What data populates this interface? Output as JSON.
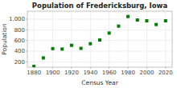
{
  "chart_data": {
    "type": "scatter",
    "title": "Population of Fredericksburg, Iowa",
    "xlabel": "Census Year",
    "ylabel": "Population",
    "x": [
      1880,
      1890,
      1900,
      1910,
      1920,
      1930,
      1940,
      1950,
      1960,
      1970,
      1980,
      1990,
      2000,
      2010,
      2020
    ],
    "values": [
      116,
      274,
      448,
      440,
      510,
      453,
      540,
      610,
      740,
      870,
      1050,
      985,
      970,
      900,
      970
    ],
    "color": "#008000",
    "marker": "square",
    "xlim": [
      1873,
      2027
    ],
    "xticks": [
      1880,
      1900,
      1920,
      1940,
      1960,
      1980,
      2000,
      2020
    ],
    "ylim": [
      100,
      1150
    ],
    "yticks": [
      200,
      400,
      600,
      800,
      {
        "value": 1000,
        "label": "1,000"
      }
    ],
    "grid": true
  }
}
